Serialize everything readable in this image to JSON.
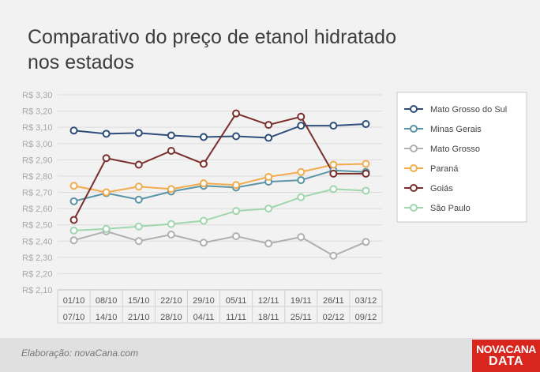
{
  "title_line1": "Comparativo do preço de etanol hidratado",
  "title_line2": "nos estados",
  "credit": "Elaboração: novaCana.com",
  "logo_line1": "NOVACANA",
  "logo_line2": "DATA",
  "chart_data": {
    "type": "line",
    "title": "Comparativo do preço de etanol hidratado nos estados",
    "categories": [
      [
        "01/10",
        "07/10"
      ],
      [
        "08/10",
        "14/10"
      ],
      [
        "15/10",
        "21/10"
      ],
      [
        "22/10",
        "28/10"
      ],
      [
        "29/10",
        "04/11"
      ],
      [
        "05/11",
        "11/11"
      ],
      [
        "12/11",
        "18/11"
      ],
      [
        "19/11",
        "25/11"
      ],
      [
        "26/11",
        "02/12"
      ],
      [
        "03/12",
        "09/12"
      ]
    ],
    "ylim": [
      2.1,
      3.3
    ],
    "yticks": [
      2.1,
      2.2,
      2.3,
      2.4,
      2.5,
      2.6,
      2.7,
      2.8,
      2.9,
      3.0,
      3.1,
      3.2,
      3.3
    ],
    "ytick_labels": [
      "R$ 2,10",
      "R$ 2,20",
      "R$ 2,30",
      "R$ 2,40",
      "R$ 2,50",
      "R$ 2,60",
      "R$ 2,70",
      "R$ 2,80",
      "R$ 2,90",
      "R$ 3,00",
      "R$ 3,10",
      "R$ 3,20",
      "R$ 3,30"
    ],
    "grid": true,
    "legend_position": "right",
    "series": [
      {
        "name": "Mato Grosso do Sul",
        "color": "#2e4d7b",
        "values": [
          3.08,
          3.06,
          3.065,
          3.05,
          3.04,
          3.045,
          3.035,
          3.11,
          3.11,
          3.12
        ]
      },
      {
        "name": "Minas Gerais",
        "color": "#5a93a6",
        "values": [
          2.645,
          2.695,
          2.655,
          2.705,
          2.74,
          2.73,
          2.765,
          2.775,
          2.835,
          2.825
        ]
      },
      {
        "name": "Mato Grosso",
        "color": "#b0b0b0",
        "values": [
          2.405,
          2.46,
          2.4,
          2.44,
          2.39,
          2.43,
          2.385,
          2.425,
          2.31,
          2.395
        ]
      },
      {
        "name": "Paraná",
        "color": "#f2ab4d",
        "values": [
          2.74,
          2.7,
          2.735,
          2.72,
          2.755,
          2.745,
          2.795,
          2.825,
          2.87,
          2.875
        ]
      },
      {
        "name": "Goiás",
        "color": "#7b2e2a",
        "values": [
          2.53,
          2.91,
          2.87,
          2.955,
          2.875,
          3.185,
          3.115,
          3.165,
          2.815,
          2.815
        ]
      },
      {
        "name": "São Paulo",
        "color": "#a0d6ae",
        "values": [
          2.465,
          2.475,
          2.49,
          2.505,
          2.525,
          2.585,
          2.6,
          2.67,
          2.72,
          2.71
        ]
      }
    ]
  }
}
